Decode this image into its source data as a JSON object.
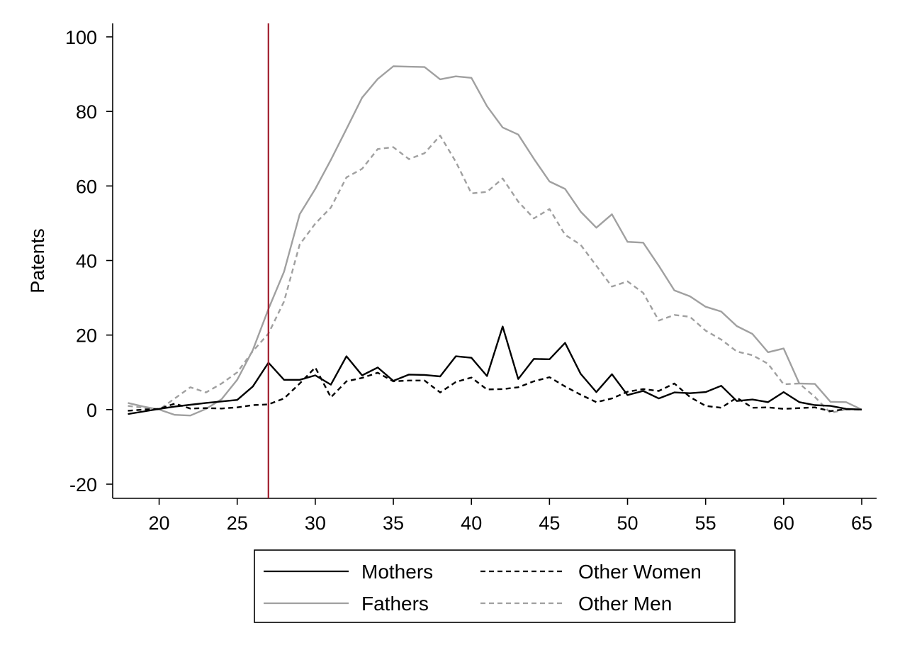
{
  "chart_data": {
    "type": "line",
    "title": "",
    "xlabel": "",
    "ylabel": "Patents",
    "xlim": [
      18,
      65
    ],
    "ylim": [
      -20,
      100
    ],
    "xticks": [
      20,
      25,
      30,
      35,
      40,
      45,
      50,
      55,
      60,
      65
    ],
    "yticks": [
      -20,
      0,
      20,
      40,
      60,
      80,
      100
    ],
    "grid": false,
    "legend": {
      "placement": "bottom",
      "columns": 2
    },
    "reference_line": {
      "axis": "x",
      "value": 27,
      "color": "#a01c2c"
    },
    "x": [
      18,
      19,
      20,
      21,
      22,
      23,
      24,
      25,
      26,
      27,
      28,
      29,
      30,
      31,
      32,
      33,
      34,
      35,
      36,
      37,
      38,
      39,
      40,
      41,
      42,
      43,
      44,
      45,
      46,
      47,
      48,
      49,
      50,
      51,
      52,
      53,
      54,
      55,
      56,
      57,
      58,
      59,
      60,
      61,
      62,
      63,
      64,
      65
    ],
    "series": [
      {
        "name": "Mothers",
        "color": "#000000",
        "dash": "solid",
        "values": [
          -1.2,
          -0.5,
          0.2,
          0.8,
          1.3,
          1.8,
          2.2,
          2.6,
          6.2,
          12.6,
          8.0,
          8.0,
          9.2,
          6.7,
          14.3,
          9.2,
          11.3,
          7.7,
          9.4,
          9.3,
          8.9,
          14.3,
          13.9,
          9.0,
          22.3,
          8.2,
          13.6,
          13.5,
          17.9,
          9.6,
          4.7,
          9.5,
          3.9,
          5.0,
          3.0,
          4.6,
          4.4,
          4.7,
          6.4,
          2.3,
          2.7,
          2.0,
          4.7,
          2.0,
          1.2,
          1.0,
          0.2,
          0.0
        ]
      },
      {
        "name": "Other Women",
        "color": "#000000",
        "dash": "dashed",
        "values": [
          -0.3,
          0.0,
          0.2,
          1.6,
          0.3,
          0.4,
          0.3,
          0.6,
          1.2,
          1.4,
          3.0,
          7.0,
          11.3,
          3.3,
          7.6,
          8.5,
          9.9,
          7.6,
          7.8,
          7.8,
          4.6,
          7.4,
          8.6,
          5.4,
          5.5,
          6.0,
          7.6,
          8.7,
          6.2,
          4.0,
          2.0,
          3.0,
          4.8,
          5.5,
          5.0,
          7.0,
          3.4,
          1.0,
          0.5,
          3.2,
          0.5,
          0.6,
          0.2,
          0.4,
          0.6,
          -0.4,
          0.1,
          0.0
        ]
      },
      {
        "name": "Fathers",
        "color": "#a0a0a0",
        "dash": "solid",
        "values": [
          1.8,
          0.8,
          0.0,
          -1.4,
          -1.6,
          0.2,
          2.8,
          8.0,
          16.0,
          27.0,
          37.0,
          52.4,
          59.2,
          67.0,
          75.3,
          83.7,
          88.7,
          92.1,
          92.0,
          91.9,
          88.6,
          89.4,
          89.0,
          81.4,
          75.7,
          73.8,
          67.3,
          61.2,
          59.2,
          53.1,
          48.8,
          52.4,
          45.0,
          44.8,
          38.6,
          32.0,
          30.4,
          27.6,
          26.3,
          22.4,
          20.3,
          15.4,
          16.4,
          7.0,
          6.9,
          2.1,
          2.0,
          0.0
        ]
      },
      {
        "name": "Other Men",
        "color": "#a0a0a0",
        "dash": "dashed",
        "values": [
          1.0,
          0.5,
          0.0,
          3.0,
          6.0,
          4.6,
          7.0,
          10.0,
          15.7,
          20.4,
          29.0,
          44.3,
          49.9,
          54.2,
          62.3,
          64.6,
          69.9,
          70.4,
          67.2,
          68.8,
          73.5,
          66.5,
          58.0,
          58.4,
          62.0,
          55.8,
          51.3,
          53.8,
          46.9,
          44.2,
          38.6,
          33.0,
          34.4,
          31.3,
          23.9,
          25.4,
          24.9,
          21.2,
          18.8,
          15.6,
          14.6,
          12.3,
          6.8,
          7.0,
          3.4,
          -0.9,
          0.1,
          0.0
        ]
      }
    ]
  }
}
